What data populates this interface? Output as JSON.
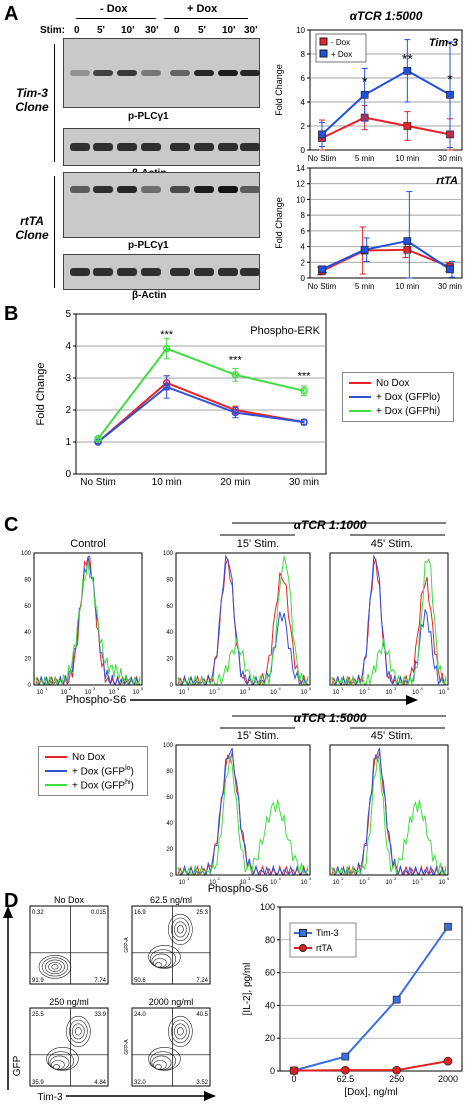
{
  "panels": {
    "a": "A",
    "b": "B",
    "c": "C",
    "d": "D"
  },
  "blots": {
    "group_minus": "- Dox",
    "group_plus": "+ Dox",
    "stim_label": "Stim:",
    "timepoints": [
      "0",
      "5'",
      "10'",
      "30'",
      "0",
      "5'",
      "10'",
      "30'"
    ],
    "clone_tim3": [
      "Tim-3",
      "Clone"
    ],
    "clone_rtta": [
      "rtTA",
      "Clone"
    ],
    "labels": [
      "p-PLCγ1",
      "β-Actin",
      "p-PLCγ1",
      "β-Actin"
    ]
  },
  "flow": {
    "control_label": "Control",
    "tcr_1000": "αTCR 1:1000",
    "tcr_5000": "αTCR 1:5000",
    "stim_15": "15' Stim.",
    "stim_45": "45' Stim.",
    "x_label": "Phospho-S6",
    "y_ticks": [
      "0",
      "20",
      "40",
      "60",
      "80",
      "100"
    ],
    "x_tick_labels": [
      "10",
      "10",
      "10",
      "10",
      "10"
    ],
    "x_tick_exps": [
      "1",
      "2",
      "3",
      "4",
      "5"
    ],
    "legend": [
      "No Dox",
      "+ Dox (GFP",
      "+ Dox (GFP"
    ],
    "legend_sup": [
      "",
      "lo",
      "hi"
    ],
    "colors": {
      "nodox": "#e8232a",
      "gfplo": "#3050d8",
      "gfphi": "#40dd40"
    }
  },
  "contours": {
    "titles": [
      "No Dox",
      "62.5 ng/ml",
      "250 ng/ml",
      "2000 ng/ml"
    ],
    "quadrants": [
      [
        "0.32",
        "0.015",
        "91.9",
        "7.74"
      ],
      [
        "16.9",
        "25.3",
        "50.6",
        "7.24"
      ],
      [
        "25.5",
        "33.9",
        "35.9",
        "4.84"
      ],
      [
        "24.0",
        "40.5",
        "32.0",
        "3.52"
      ]
    ],
    "x_axis": "Tim-3",
    "y_axis": "GFP",
    "side_label": "GFP-A"
  },
  "chart_data": [
    {
      "type": "line",
      "title": "αTCR 1:5000",
      "annotation": "Tim-3",
      "ylabel": "Fold Change",
      "categories": [
        "No Stim",
        "5 min",
        "10 min",
        "30 min"
      ],
      "ylim": [
        0,
        10
      ],
      "y_ticks": [
        0,
        2,
        4,
        6,
        8,
        10
      ],
      "grid": true,
      "legend_position": "top-left",
      "series": [
        {
          "name": "- Dox",
          "color": "#e8232a",
          "values": [
            1.0,
            2.7,
            2.0,
            1.3
          ],
          "errors": [
            1.5,
            1.0,
            1.2,
            1.3
          ]
        },
        {
          "name": "+ Dox",
          "color": "#2050e0",
          "values": [
            1.3,
            4.6,
            6.6,
            4.6
          ],
          "errors": [
            1.0,
            2.2,
            2.6,
            4.4
          ]
        }
      ],
      "significance": [
        {
          "category": "5 min",
          "label": "*"
        },
        {
          "category": "10 min",
          "label": "**"
        },
        {
          "category": "30 min",
          "label": "*"
        }
      ]
    },
    {
      "type": "line",
      "annotation": "rtTA",
      "ylabel": "Fold Change",
      "categories": [
        "No Stim",
        "5 min",
        "10 min",
        "30 min"
      ],
      "ylim": [
        0,
        14
      ],
      "y_ticks": [
        0,
        2,
        4,
        6,
        8,
        10,
        12,
        14
      ],
      "grid": true,
      "series": [
        {
          "color": "#e8232a",
          "values": [
            0.9,
            3.5,
            3.6,
            1.4
          ],
          "errors": [
            0.5,
            3.0,
            1.0,
            0.6
          ]
        },
        {
          "color": "#2050e0",
          "values": [
            1.1,
            3.6,
            4.7,
            1.1
          ],
          "errors": [
            0.4,
            1.5,
            6.3,
            1.0
          ]
        }
      ]
    },
    {
      "type": "line",
      "title": "Phospho-ERK",
      "ylabel": "Fold Change",
      "categories": [
        "No Stim",
        "10 min",
        "20 min",
        "30 min"
      ],
      "ylim": [
        0,
        5
      ],
      "y_ticks": [
        0,
        1,
        2,
        3,
        4,
        5
      ],
      "grid": true,
      "legend_position": "right",
      "series": [
        {
          "name": "No Dox",
          "color": "#e8232a",
          "values": [
            1.0,
            2.85,
            2.0,
            1.62
          ],
          "errors": [
            0.04,
            0.22,
            0.12,
            0.08
          ]
        },
        {
          "name": "+ Dox (GFPlo)",
          "color": "#3050d8",
          "values": [
            1.0,
            2.72,
            1.92,
            1.62
          ],
          "errors": [
            0.05,
            0.35,
            0.16,
            0.08
          ]
        },
        {
          "name": "+ Dox (GFPhi)",
          "color": "#40dd40",
          "values": [
            1.1,
            3.92,
            3.1,
            2.6
          ],
          "errors": [
            0.05,
            0.32,
            0.2,
            0.15
          ]
        }
      ],
      "significance": [
        {
          "category": "10 min",
          "label": "***"
        },
        {
          "category": "20 min",
          "label": "***"
        },
        {
          "category": "30 min",
          "label": "***"
        }
      ]
    },
    {
      "type": "line",
      "ylabel": "[IL-2], pg/ml",
      "xlabel": "[Dox], ng/ml",
      "categories": [
        "0",
        "62.5",
        "250",
        "2000"
      ],
      "ylim": [
        0,
        100
      ],
      "y_ticks": [
        0,
        20,
        40,
        60,
        80,
        100
      ],
      "grid": true,
      "legend_position": "top-left",
      "series": [
        {
          "name": "Tim-3",
          "color": "#3a6fe0",
          "marker": "square",
          "values": [
            0.3,
            8.8,
            43.5,
            88.0
          ]
        },
        {
          "name": "rtTA",
          "color": "#e02020",
          "marker": "circle",
          "values": [
            0.2,
            0.5,
            0.5,
            6.0
          ]
        }
      ]
    }
  ]
}
